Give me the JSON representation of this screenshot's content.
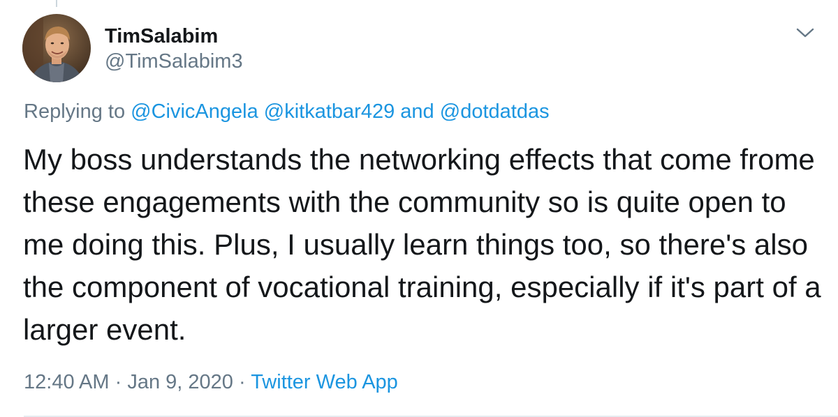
{
  "user": {
    "display_name": "TimSalabim",
    "handle": "@TimSalabim3"
  },
  "reply": {
    "prefix": "Replying to",
    "mention_1": "@CivicAngela",
    "mention_2": "@kitkatbar429",
    "conjunction": "and",
    "mention_3": "@dotdatdas"
  },
  "tweet": {
    "text": "My boss understands the networking effects that come frome these engagements with the community so is quite open to me doing this. Plus, I usually learn things too, so there's also the component of vocational training, especially if it's part of a larger event."
  },
  "meta": {
    "time": "12:40 AM",
    "separator_1": "·",
    "date": "Jan 9, 2020",
    "separator_2": "·",
    "source": "Twitter Web App"
  },
  "icons": {
    "caret": "chevron-down-icon"
  },
  "colors": {
    "link": "#1b95e0",
    "secondary": "#657786",
    "primary_text": "#14171a",
    "border": "#e6ecf0"
  }
}
